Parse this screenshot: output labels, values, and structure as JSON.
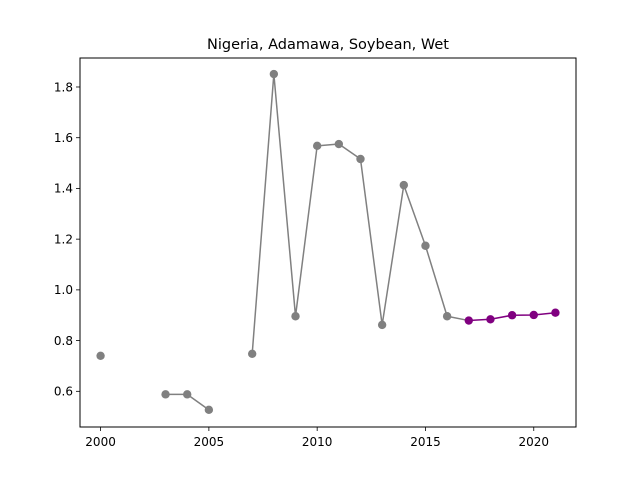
{
  "chart_data": {
    "type": "line",
    "title": "Nigeria, Adamawa, Soybean, Wet",
    "xlabel": "",
    "ylabel": "",
    "xlim": [
      1999.05,
      2021.95
    ],
    "ylim": [
      0.4593,
      1.9143
    ],
    "xticks": [
      2000,
      2005,
      2010,
      2015,
      2020
    ],
    "yticks": [
      0.6,
      0.8,
      1.0,
      1.2,
      1.4,
      1.6,
      1.8
    ],
    "ytick_labels": [
      "0.6",
      "0.8",
      "1.0",
      "1.2",
      "1.4",
      "1.6",
      "1.8"
    ],
    "grid": false,
    "series": [
      {
        "color": "#808080",
        "segments": [
          [
            [
              2000,
              0.74
            ]
          ],
          [
            [
              2003,
              0.588
            ],
            [
              2004,
              0.588
            ],
            [
              2005,
              0.527
            ]
          ],
          [
            [
              2007,
              0.748
            ],
            [
              2008,
              1.851
            ],
            [
              2009,
              0.896
            ],
            [
              2010,
              1.568
            ],
            [
              2011,
              1.575
            ],
            [
              2012,
              1.516
            ],
            [
              2013,
              0.862
            ],
            [
              2014,
              1.413
            ],
            [
              2015,
              1.174
            ],
            [
              2016,
              0.896
            ]
          ]
        ]
      },
      {
        "color": "#800080",
        "segments": [
          [
            [
              2017,
              0.879
            ],
            [
              2018,
              0.884
            ],
            [
              2019,
              0.9
            ],
            [
              2020,
              0.901
            ],
            [
              2021,
              0.91
            ]
          ]
        ]
      }
    ],
    "connector": {
      "color": "#808080",
      "points": [
        [
          2016,
          0.896
        ],
        [
          2017,
          0.879
        ]
      ]
    }
  }
}
